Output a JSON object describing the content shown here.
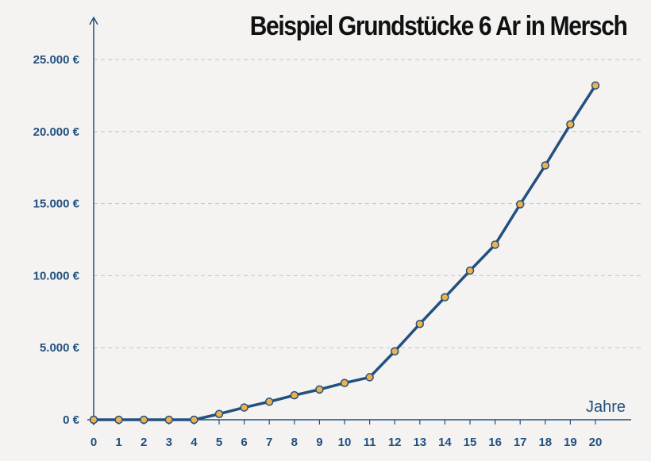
{
  "colors": {
    "line": "#23507f",
    "marker_fill": "#f0b248",
    "marker_stroke": "#23507f",
    "axis": "#23507f",
    "grid": "#b9c6d8",
    "background": "#f4f3f1"
  },
  "chart_data": {
    "type": "line",
    "title": "Beispiel Grundstücke 6 Ar in Mersch",
    "xlabel": "Jahre",
    "ylabel": "",
    "x": [
      0,
      1,
      2,
      3,
      4,
      5,
      6,
      7,
      8,
      9,
      10,
      11,
      12,
      13,
      14,
      15,
      16,
      17,
      18,
      19,
      20
    ],
    "xticks": [
      "0",
      "1",
      "2",
      "3",
      "4",
      "5",
      "6",
      "7",
      "8",
      "9",
      "10",
      "11",
      "12",
      "13",
      "14",
      "15",
      "16",
      "17",
      "18",
      "19",
      "20"
    ],
    "yticks": [
      {
        "value": 0,
        "label": "0 €"
      },
      {
        "value": 5000,
        "label": "5.000 €"
      },
      {
        "value": 10000,
        "label": "10.000 €"
      },
      {
        "value": 15000,
        "label": "15.000 €"
      },
      {
        "value": 20000,
        "label": "20.000 €"
      },
      {
        "value": 25000,
        "label": "25.000 €"
      }
    ],
    "ylim": [
      0,
      25000
    ],
    "grid": "horizontal dashed",
    "legend": "none",
    "series": [
      {
        "values": [
          0,
          0,
          0,
          0,
          0,
          400,
          850,
          1250,
          1700,
          2100,
          2550,
          2950,
          4750,
          6650,
          8500,
          10350,
          12150,
          14950,
          17650,
          20500,
          23200
        ]
      }
    ]
  }
}
